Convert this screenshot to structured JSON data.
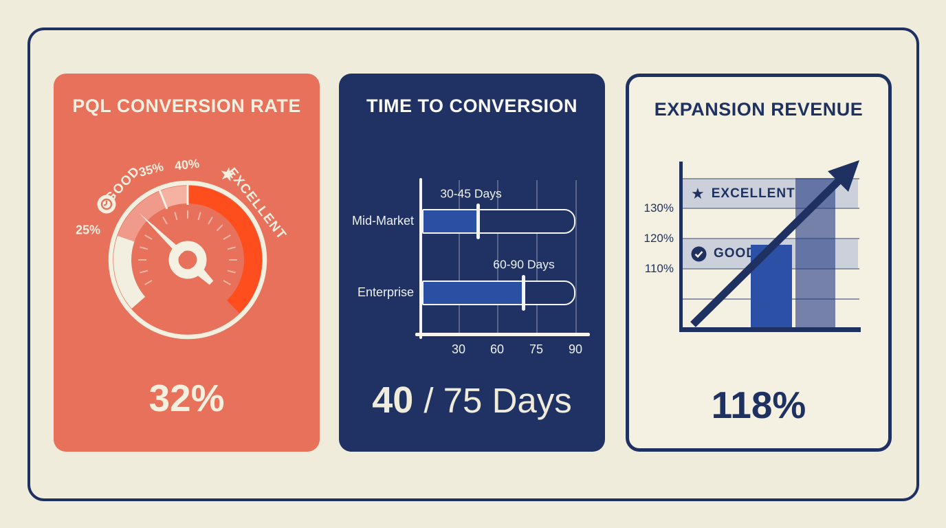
{
  "colors": {
    "page_bg": "#f0ecdc",
    "navy": "#1e3161",
    "coral": "#e8715c",
    "cream": "#f3f0e0",
    "orange_zone": "#ff4e1e",
    "pink_zone": "#f09a8b",
    "light_pink_zone": "#f5b2a3",
    "bar_blue": "#2b4fa3",
    "band_gray": "#cbd0da"
  },
  "cards": {
    "pql": {
      "title": "PQL CONVERSION RATE",
      "value": "32%",
      "gauge_labels": {
        "low": "25%",
        "mid": "35%",
        "high": "40%",
        "good": "GOOD",
        "excellent": "EXCELLENT"
      }
    },
    "time": {
      "title": "TIME TO CONVERSION",
      "value_primary": "40",
      "value_secondary": "/ 75 Days",
      "rows": [
        {
          "label": "Mid-Market",
          "annotation": "30-45 Days"
        },
        {
          "label": "Enterprise",
          "annotation": "60-90 Days"
        }
      ],
      "x_ticks": [
        "30",
        "60",
        "75",
        "90"
      ]
    },
    "exp": {
      "title": "EXPANSION REVENUE",
      "value": "118%",
      "y_labels": [
        "130%",
        "120%",
        "110%"
      ],
      "bands": [
        {
          "label": "EXCELLENT"
        },
        {
          "label": "GOOD"
        }
      ]
    }
  },
  "chart_data": [
    {
      "type": "gauge",
      "title": "PQL CONVERSION RATE",
      "value": 32,
      "unit": "%",
      "display_value": "32%",
      "tick_labels": [
        "25%",
        "35%",
        "40%"
      ],
      "zones": [
        {
          "label": "GOOD",
          "range": "25-40%"
        },
        {
          "label": "EXCELLENT",
          "range": "40%+"
        }
      ],
      "needle_angle_deg": -46
    },
    {
      "type": "bar",
      "orientation": "horizontal",
      "title": "TIME TO CONVERSION",
      "categories": [
        "Mid-Market",
        "Enterprise"
      ],
      "annotations": [
        "30-45 Days",
        "60-90 Days"
      ],
      "marker_days": [
        45,
        70
      ],
      "range_max_days": 90,
      "x_ticks": [
        30,
        60,
        75,
        90
      ],
      "summary": "40 / 75 Days"
    },
    {
      "type": "bar",
      "orientation": "vertical",
      "title": "EXPANSION REVENUE",
      "display_value": "118%",
      "y_ticks": [
        130,
        120,
        110
      ],
      "bars": [
        {
          "name": "current",
          "value": 118
        },
        {
          "name": "reference",
          "value": 140
        }
      ],
      "bands": [
        {
          "label": "EXCELLENT",
          "from": 130,
          "to": 140
        },
        {
          "label": "GOOD",
          "from": 110,
          "to": 120
        }
      ],
      "trend": "up"
    }
  ]
}
